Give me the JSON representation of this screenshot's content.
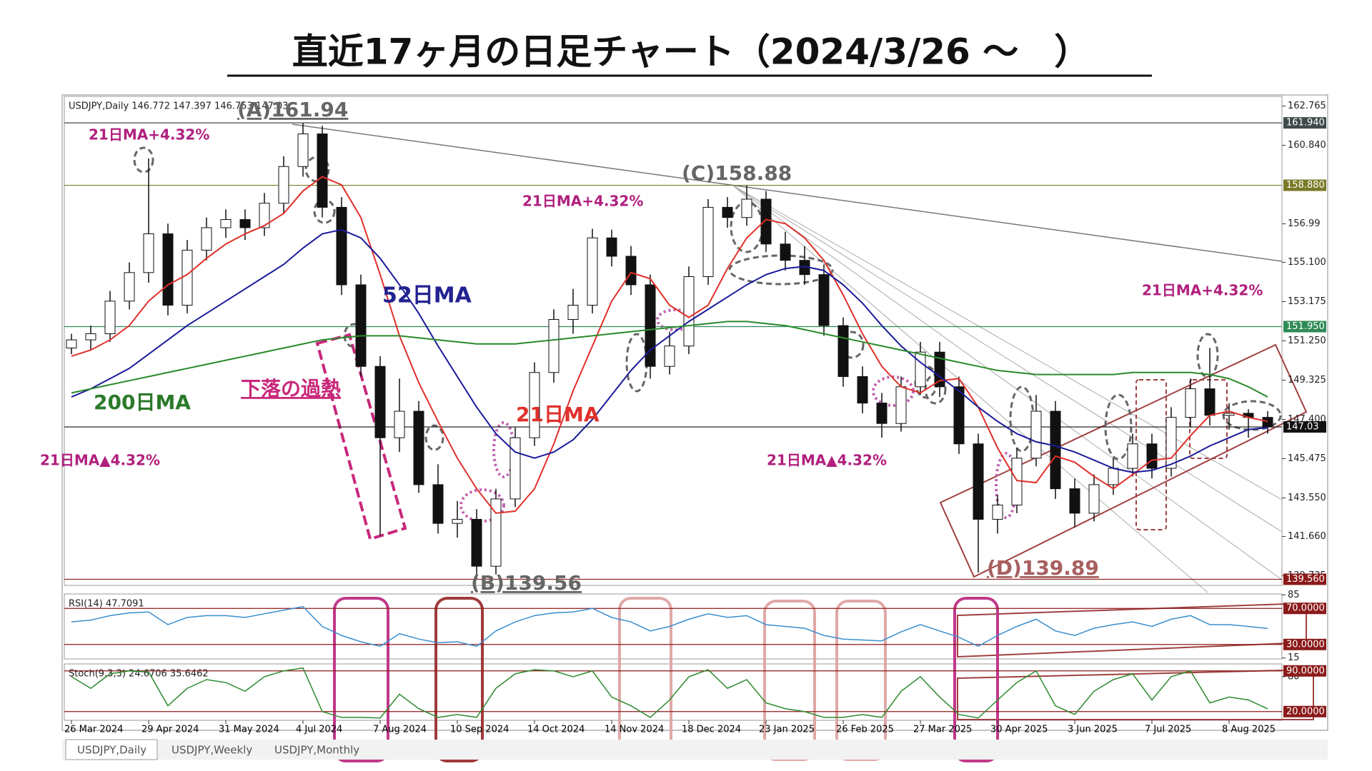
{
  "title": "直近17ヶ月の日足チャート（2024/3/26 ～　）",
  "tabs": [
    "USDJPY,Daily",
    "USDJPY,Weekly",
    "USDJPY,Monthly"
  ],
  "chart_data": [
    {
      "type": "candlestick",
      "header": "USDJPY,Daily  146.772 147.397 146.753 147.03",
      "x_labels": [
        "26 Mar 2024",
        "29 Apr 2024",
        "31 May 2024",
        "4 Jul 2024",
        "7 Aug 2024",
        "10 Sep 2024",
        "14 Oct 2024",
        "14 Nov 2024",
        "18 Dec 2024",
        "23 Jan 2025",
        "26 Feb 2025",
        "27 Mar 2025",
        "30 Apr 2025",
        "3 Jun 2025",
        "7 Jul 2025",
        "8 Aug 2025"
      ],
      "open": [
        150.9,
        151.3,
        151.6,
        153.2,
        154.6,
        156.5,
        153.0,
        155.7,
        156.8,
        157.2,
        156.8,
        158.0,
        159.8,
        161.4,
        157.8,
        154.0,
        150.0,
        146.5,
        147.8,
        144.2,
        142.3,
        142.5,
        140.2,
        143.5,
        146.5,
        149.7,
        152.3,
        153.0,
        156.3,
        155.4,
        154.0,
        150.0,
        151.0,
        154.4,
        157.8,
        157.3,
        158.2,
        156.0,
        155.2,
        154.5,
        152.0,
        149.5,
        148.2,
        147.2,
        149.0,
        150.7,
        149.0,
        146.2,
        142.5,
        143.2,
        145.5,
        147.8,
        144.0,
        142.8,
        144.2,
        145.0,
        146.2,
        145.0,
        147.5,
        148.9,
        147.6,
        147.7,
        147.5
      ],
      "high": [
        151.6,
        152.0,
        153.7,
        155.1,
        160.2,
        157.0,
        156.2,
        157.3,
        157.7,
        157.7,
        158.5,
        160.3,
        161.94,
        161.8,
        158.3,
        154.5,
        150.5,
        149.4,
        148.3,
        145.2,
        143.4,
        143.0,
        144.0,
        147.0,
        150.2,
        152.8,
        153.8,
        156.75,
        156.7,
        155.9,
        154.5,
        151.7,
        154.9,
        158.2,
        158.3,
        158.88,
        158.6,
        156.6,
        155.9,
        155.0,
        152.4,
        150.0,
        148.7,
        149.5,
        151.2,
        151.2,
        149.5,
        146.7,
        143.7,
        146.0,
        148.6,
        148.3,
        144.5,
        144.7,
        145.5,
        146.7,
        146.7,
        148.0,
        149.4,
        150.9,
        148.2,
        147.9,
        147.8
      ],
      "low": [
        150.6,
        150.8,
        151.2,
        152.8,
        154.1,
        152.5,
        152.6,
        155.2,
        156.3,
        156.2,
        156.4,
        157.5,
        159.3,
        157.3,
        153.5,
        149.5,
        141.7,
        145.8,
        143.8,
        141.8,
        141.6,
        139.56,
        139.8,
        143.1,
        146.1,
        149.2,
        151.6,
        152.6,
        154.9,
        153.5,
        149.4,
        149.6,
        150.6,
        154.0,
        156.8,
        156.9,
        155.6,
        154.7,
        154.0,
        151.5,
        149.0,
        147.7,
        146.5,
        146.8,
        148.6,
        148.5,
        145.7,
        139.89,
        141.8,
        142.8,
        145.1,
        143.5,
        142.1,
        142.4,
        143.7,
        144.6,
        144.5,
        144.6,
        147.0,
        147.1,
        146.9,
        146.5,
        146.7
      ],
      "close": [
        151.3,
        151.6,
        153.2,
        154.6,
        156.5,
        153.0,
        155.7,
        156.8,
        157.2,
        156.8,
        158.0,
        159.8,
        161.4,
        157.8,
        154.0,
        150.0,
        146.5,
        147.8,
        144.2,
        142.3,
        142.5,
        140.2,
        143.5,
        146.5,
        149.7,
        152.3,
        153.0,
        156.3,
        155.4,
        154.0,
        150.0,
        151.0,
        154.4,
        157.8,
        157.3,
        158.2,
        156.0,
        155.2,
        154.5,
        152.0,
        149.5,
        148.2,
        147.2,
        149.0,
        150.7,
        149.0,
        146.2,
        142.5,
        143.2,
        145.5,
        147.8,
        144.0,
        142.8,
        144.2,
        145.0,
        146.2,
        145.0,
        147.5,
        148.9,
        147.6,
        147.7,
        147.5,
        147.03
      ],
      "ma": [
        {
          "color": "#e0302a",
          "values": [
            150.5,
            150.8,
            151.3,
            152.0,
            153.2,
            154.0,
            154.5,
            155.3,
            156.0,
            156.5,
            156.9,
            157.5,
            158.6,
            159.3,
            158.9,
            157.3,
            154.5,
            151.5,
            149.2,
            147.3,
            145.5,
            144.0,
            142.8,
            142.9,
            144.0,
            146.2,
            148.8,
            151.0,
            153.2,
            154.6,
            154.3,
            153.0,
            152.4,
            153.0,
            154.8,
            156.3,
            157.2,
            157.0,
            156.3,
            155.2,
            153.5,
            151.6,
            150.0,
            149.0,
            148.7,
            149.3,
            149.4,
            148.0,
            146.0,
            144.4,
            144.3,
            145.6,
            145.3,
            144.6,
            144.0,
            144.7,
            145.4,
            145.5,
            146.6,
            147.6,
            147.8,
            147.5,
            147.3
          ]
        },
        {
          "color": "#1a1a9a",
          "values": [
            148.5,
            148.9,
            149.4,
            149.9,
            150.6,
            151.3,
            152.0,
            152.6,
            153.2,
            153.8,
            154.4,
            155.0,
            155.8,
            156.5,
            156.7,
            156.3,
            155.3,
            154.0,
            152.6,
            151.0,
            149.5,
            148.0,
            146.7,
            145.8,
            145.5,
            145.8,
            146.4,
            147.4,
            148.6,
            149.8,
            150.8,
            151.5,
            152.2,
            152.8,
            153.4,
            154.0,
            154.5,
            154.8,
            154.9,
            154.7,
            154.0,
            153.1,
            152.0,
            151.0,
            150.2,
            149.5,
            148.8,
            148.0,
            147.3,
            146.7,
            146.3,
            146.1,
            145.8,
            145.4,
            145.0,
            144.8,
            144.9,
            145.2,
            145.6,
            146.1,
            146.5,
            146.9,
            147.0
          ]
        },
        {
          "color": "#2a8a2a",
          "values": [
            148.7,
            148.9,
            149.1,
            149.3,
            149.5,
            149.7,
            149.9,
            150.1,
            150.3,
            150.5,
            150.7,
            150.9,
            151.1,
            151.3,
            151.4,
            151.5,
            151.5,
            151.5,
            151.4,
            151.3,
            151.2,
            151.1,
            151.1,
            151.1,
            151.2,
            151.3,
            151.4,
            151.5,
            151.6,
            151.7,
            151.8,
            151.9,
            152.0,
            152.1,
            152.2,
            152.2,
            152.1,
            152.0,
            151.8,
            151.6,
            151.4,
            151.2,
            151.0,
            150.8,
            150.6,
            150.4,
            150.2,
            150.0,
            149.8,
            149.7,
            149.6,
            149.6,
            149.6,
            149.6,
            149.6,
            149.7,
            149.7,
            149.7,
            149.7,
            149.6,
            149.4,
            149.0,
            148.5
          ]
        }
      ],
      "ylim": [
        139.26,
        163.24
      ],
      "yticks": [
        162.765,
        {
          "value": 160.84,
          "label": "160.840"
        },
        156.99,
        {
          "value": 155.1,
          "label": "155.100"
        },
        153.175,
        {
          "value": 151.25,
          "label": "151.250"
        },
        149.325,
        {
          "value": 147.4,
          "label": "147.400"
        },
        145.475,
        {
          "value": 143.55,
          "label": "143.550"
        },
        {
          "value": 141.66,
          "label": "141.660"
        },
        139.735
      ],
      "levels": [
        {
          "value": 161.94,
          "label": "161.940",
          "color": "#3f4a4a"
        },
        {
          "value": 158.88,
          "label": "158.880",
          "color": "#7a7a28"
        },
        {
          "value": 151.95,
          "label": "151.950",
          "color": "#2e8b57"
        },
        {
          "value": 147.03,
          "color": "#111111"
        },
        {
          "value": 139.56,
          "label": "139.560",
          "color": "#8b1a1a"
        }
      ],
      "annotations": [
        {
          "text": "(A)161.94",
          "color": "#666666"
        },
        {
          "text": "21日MA+4.32%",
          "color": "#b0207e"
        },
        {
          "text": "(C)158.88",
          "color": "#666666"
        },
        {
          "text": "21日MA+4.32%",
          "color": "#b0207e"
        },
        {
          "text": "21日MA+4.32%",
          "color": "#b0207e"
        },
        {
          "text": "52日MA",
          "color": "#222290"
        },
        {
          "text": "下落の過熱",
          "color": "#c8287a"
        },
        {
          "text": "200日MA",
          "color": "#2a7a2a"
        },
        {
          "text": "21日MA",
          "color": "#e0302a"
        },
        {
          "text": "21日MA▲4.32%",
          "color": "#b0207e"
        },
        {
          "text": "21日MA▲4.32%",
          "color": "#b0207e"
        },
        {
          "text": "(D)139.89",
          "color": "#a86060"
        },
        {
          "text": "(B)139.56",
          "color": "#666666"
        }
      ]
    },
    {
      "type": "line",
      "header": "RSI(14) 47.7091",
      "color": "#3a8fd0",
      "values": [
        55,
        57,
        62,
        65,
        66,
        52,
        60,
        62,
        62,
        60,
        64,
        68,
        72,
        50,
        40,
        33,
        28,
        42,
        36,
        32,
        33,
        28,
        45,
        55,
        62,
        65,
        66,
        70,
        60,
        55,
        45,
        50,
        58,
        64,
        60,
        62,
        52,
        50,
        48,
        40,
        36,
        35,
        34,
        44,
        52,
        45,
        38,
        28,
        40,
        50,
        58,
        45,
        40,
        48,
        52,
        55,
        50,
        58,
        62,
        52,
        52,
        50,
        47.7091
      ],
      "ylim": [
        14,
        86
      ],
      "yticks": [
        85,
        15
      ],
      "levels": [
        {
          "value": 70,
          "label": "70.0000",
          "color": "#8b1a1a"
        },
        {
          "value": 30,
          "label": "30.0000",
          "color": "#8b1a1a"
        }
      ]
    },
    {
      "type": "line",
      "header": "Stoch(9,3,3) 24.6706 35.6462",
      "color": "#2d8a2d",
      "values": [
        80,
        60,
        85,
        90,
        88,
        30,
        60,
        75,
        70,
        55,
        80,
        90,
        95,
        20,
        10,
        10,
        9,
        50,
        25,
        10,
        15,
        10,
        60,
        85,
        92,
        90,
        80,
        90,
        45,
        30,
        10,
        40,
        80,
        92,
        60,
        75,
        35,
        25,
        20,
        10,
        10,
        15,
        10,
        55,
        80,
        45,
        15,
        9,
        40,
        70,
        90,
        30,
        15,
        55,
        75,
        85,
        40,
        80,
        90,
        35,
        45,
        40,
        24.6706
      ],
      "ylim": [
        5,
        102
      ],
      "yticks": [
        80
      ],
      "levels": [
        {
          "value": 90,
          "label": "90.0000",
          "color": "#8b1a1a"
        },
        {
          "value": 20,
          "label": "20.0000",
          "color": "#8b1a1a"
        }
      ]
    }
  ]
}
